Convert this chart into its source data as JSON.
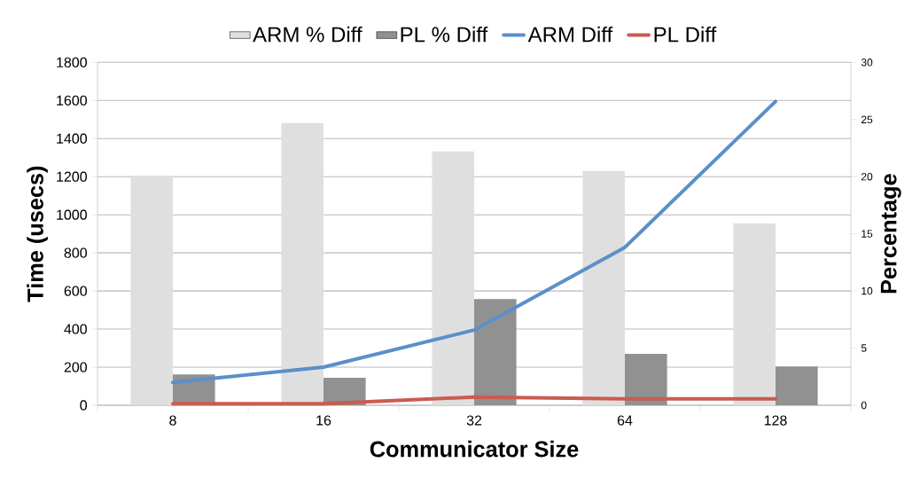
{
  "chart_data": {
    "type": "bar",
    "xlabel": "Communicator Size",
    "ylabel": "Time (usecs)",
    "y2label": "Percentage",
    "categories": [
      "8",
      "16",
      "32",
      "64",
      "128"
    ],
    "series": [
      {
        "name": "ARM % Diff",
        "axis": "y2",
        "color": "#dfdfdf",
        "values": [
          20.1,
          24.7,
          22.2,
          20.5,
          15.9
        ]
      },
      {
        "name": "PL % Diff",
        "axis": "y2",
        "color": "#919191",
        "values": [
          2.7,
          2.4,
          9.3,
          4.5,
          3.4
        ]
      },
      {
        "name": "ARM Diff",
        "type": "line",
        "axis": "y",
        "color": "#5b8fc9",
        "values": [
          120,
          200,
          395,
          829,
          1595
        ]
      },
      {
        "name": "PL Diff",
        "type": "line",
        "axis": "y",
        "color": "#cb5b52",
        "values": [
          8,
          8,
          43,
          34,
          34
        ]
      }
    ],
    "ylim": [
      0,
      1800
    ],
    "yticks": [
      0,
      200,
      400,
      600,
      800,
      1000,
      1200,
      1400,
      1600,
      1800
    ],
    "y2lim": [
      0,
      30
    ],
    "y2ticks": [
      0,
      5,
      10,
      15,
      20,
      25,
      30
    ],
    "grid": "y",
    "legend": "top"
  }
}
